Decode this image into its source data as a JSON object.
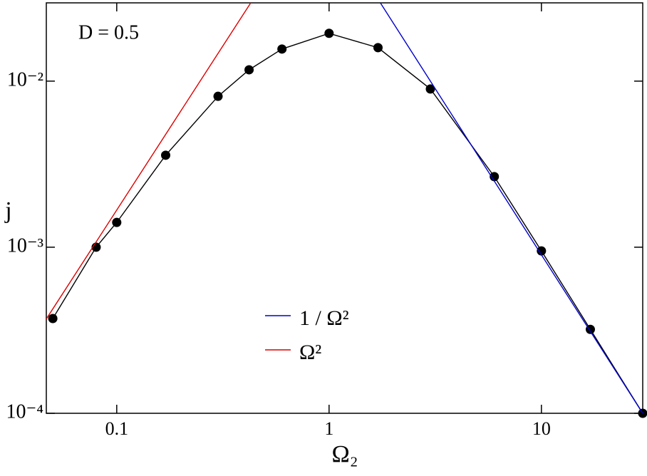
{
  "chart_data": {
    "type": "line",
    "annotation": "D = 0.5",
    "x_label": "Ω₂",
    "y_label": "j",
    "log_x": true,
    "log_y": true,
    "xlim": [
      0.0466,
      30
    ],
    "ylim": [
      0.0001,
      0.0296
    ],
    "xticks": [
      0.1,
      1,
      10
    ],
    "yticks": [
      {
        "value": 0.0001,
        "label": "10⁻⁴"
      },
      {
        "value": 0.001,
        "label": "10⁻³"
      },
      {
        "value": 0.01,
        "label": "10⁻²"
      }
    ],
    "legend_position": "center",
    "series": [
      {
        "color": "#000000",
        "marker": true,
        "x": [
          0.05,
          0.08,
          0.1,
          0.17,
          0.3,
          0.42,
          0.6,
          1,
          1.7,
          3,
          6,
          10,
          17,
          30
        ],
        "values": [
          0.000372,
          0.001,
          0.00141,
          0.00358,
          0.0081,
          0.0117,
          0.0156,
          0.0194,
          0.0159,
          0.00897,
          0.00266,
          0.00095,
          0.00032,
          0.0001
        ]
      },
      {
        "name": "1 / Ω²",
        "color": "#0000cc",
        "marker": false,
        "x": [
          1.744,
          30
        ],
        "values": [
          0.0296,
          0.0001
        ]
      },
      {
        "name": "Ω²",
        "color": "#dd0000",
        "marker": false,
        "x": [
          0.0466,
          0.4276
        ],
        "values": [
          0.00037,
          0.0296
        ]
      }
    ]
  }
}
